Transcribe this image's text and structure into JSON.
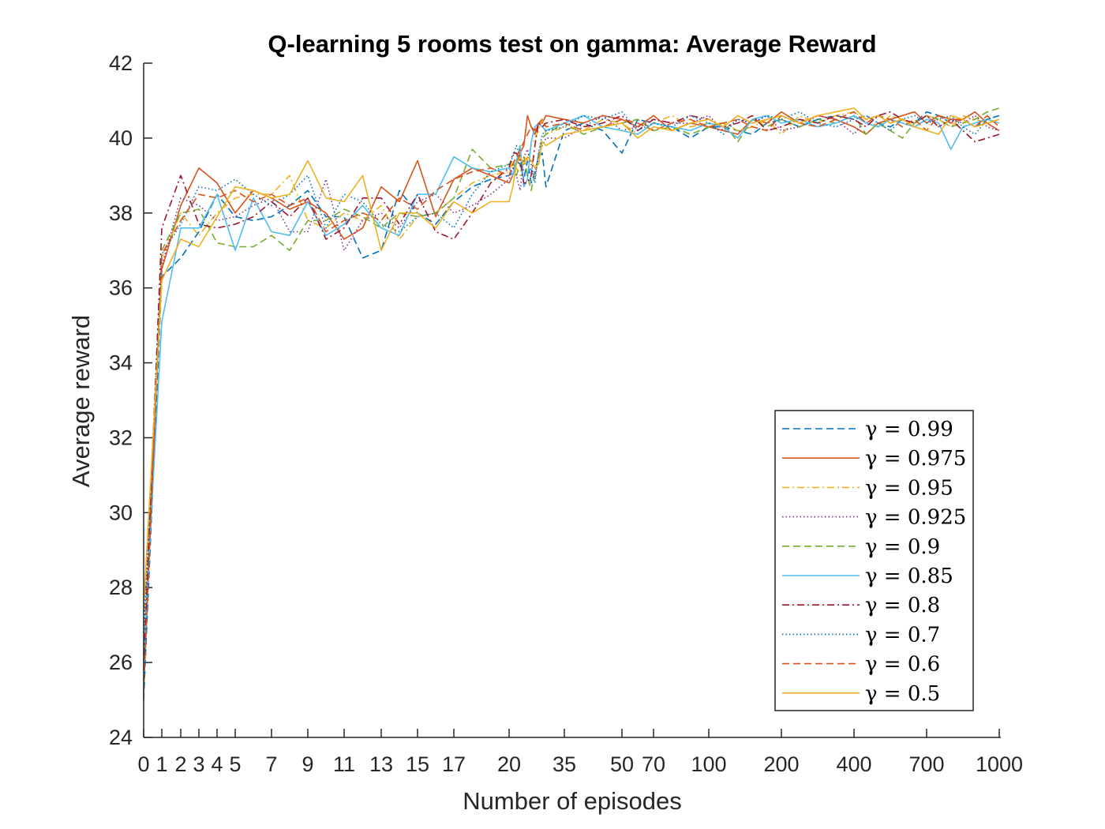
{
  "chart_data": {
    "type": "line",
    "title": "Q-learning 5 rooms test on gamma: Average Reward",
    "xlabel": "Number of episodes",
    "ylabel": "Average reward",
    "ylim": [
      24,
      42
    ],
    "y_ticks": [
      "24",
      "26",
      "28",
      "30",
      "32",
      "34",
      "36",
      "38",
      "40",
      "42"
    ],
    "x_scale": "piecewise (tick labels as printed, unevenly spaced)",
    "x_ticks": [
      "0",
      "1",
      "2",
      "3",
      "4",
      "5",
      "7",
      "9",
      "11",
      "13",
      "15",
      "17",
      "20",
      "35",
      "50",
      "70",
      "100",
      "200",
      "400",
      "700",
      "1000"
    ],
    "grid": false,
    "legend_placement": "bottom-right",
    "x": [
      0,
      1,
      2,
      3,
      4,
      5,
      6,
      7,
      8,
      9,
      10,
      11,
      12,
      13,
      14,
      15,
      16,
      17,
      18,
      19,
      20,
      21,
      22,
      23,
      24,
      25,
      26,
      27,
      28,
      29,
      30,
      35,
      40,
      45,
      50,
      60,
      70,
      80,
      90,
      100,
      120,
      140,
      160,
      180,
      200,
      250,
      300,
      350,
      400,
      450,
      500,
      550,
      600,
      650,
      700,
      750,
      800,
      850,
      900,
      950,
      1000
    ],
    "series": [
      {
        "name": "γ = 0.99",
        "color": "#0072BD",
        "dash": "dashed",
        "values": [
          25.0,
          36.3,
          36.8,
          37.5,
          38.5,
          37.9,
          37.8,
          37.9,
          38.2,
          38.6,
          37.9,
          37.9,
          36.8,
          37.0,
          38.6,
          38.0,
          37.7,
          38.3,
          38.7,
          38.9,
          39.0,
          39.1,
          39.4,
          39.3,
          38.9,
          39.4,
          38.8,
          39.1,
          39.5,
          39.6,
          38.7,
          40.2,
          40.4,
          40.2,
          39.6,
          40.5,
          40.4,
          40.3,
          40.0,
          40.3,
          40.3,
          40.2,
          40.1,
          40.4,
          40.5,
          40.3,
          40.5,
          40.6,
          40.5,
          40.6,
          40.4,
          40.3,
          40.5,
          40.4,
          40.7,
          40.6,
          40.4,
          40.5,
          40.3,
          40.5,
          40.6
        ]
      },
      {
        "name": "γ = 0.975",
        "color": "#D95319",
        "dash": "solid",
        "values": [
          26.0,
          36.5,
          38.2,
          39.2,
          38.8,
          38.0,
          38.6,
          38.4,
          38.1,
          38.3,
          38.0,
          37.3,
          37.6,
          38.7,
          38.3,
          39.4,
          37.9,
          38.9,
          39.2,
          39.0,
          38.8,
          39.0,
          39.3,
          39.6,
          39.8,
          40.6,
          40.3,
          40.1,
          40.4,
          40.4,
          40.6,
          40.5,
          40.4,
          40.6,
          40.5,
          40.3,
          40.6,
          40.2,
          40.4,
          40.3,
          40.2,
          40.1,
          40.5,
          40.4,
          40.7,
          40.4,
          40.6,
          40.5,
          40.3,
          40.1,
          40.4,
          40.5,
          40.6,
          40.7,
          40.4,
          40.6,
          40.5,
          40.5,
          40.7,
          40.4,
          40.2
        ]
      },
      {
        "name": "γ = 0.95",
        "color": "#EDB120",
        "dash": "dashdot",
        "values": [
          27.0,
          36.8,
          38.0,
          37.4,
          38.0,
          38.4,
          38.5,
          38.5,
          39.0,
          37.8,
          37.6,
          38.0,
          37.8,
          38.2,
          37.3,
          37.9,
          38.0,
          38.4,
          38.8,
          39.0,
          39.1,
          39.4,
          39.2,
          39.0,
          39.5,
          39.4,
          39.8,
          40.0,
          40.2,
          40.5,
          40.1,
          40.3,
          40.2,
          40.5,
          40.4,
          40.1,
          40.4,
          40.6,
          40.3,
          40.4,
          40.4,
          40.2,
          40.3,
          40.5,
          40.1,
          40.6,
          40.4,
          40.6,
          40.7,
          40.5,
          40.3,
          40.6,
          40.5,
          40.4,
          40.6,
          40.5,
          40.3,
          40.6,
          40.5,
          40.4,
          40.5
        ]
      },
      {
        "name": "γ = 0.925",
        "color": "#7E2F8E",
        "dash": "dotted",
        "values": [
          26.5,
          36.6,
          38.4,
          38.2,
          37.8,
          37.9,
          38.2,
          38.4,
          37.5,
          37.5,
          38.9,
          37.0,
          37.8,
          38.0,
          37.6,
          38.3,
          38.5,
          38.0,
          38.2,
          38.5,
          38.9,
          39.2,
          39.0,
          38.6,
          39.5,
          39.7,
          39.3,
          38.9,
          39.6,
          39.8,
          40.0,
          40.0,
          40.3,
          40.6,
          40.2,
          40.3,
          40.5,
          40.4,
          40.4,
          40.6,
          40.2,
          40.5,
          40.4,
          40.6,
          40.2,
          40.3,
          40.6,
          40.5,
          40.1,
          40.5,
          40.6,
          40.4,
          40.5,
          40.4,
          40.6,
          40.3,
          40.5,
          40.4,
          40.6,
          40.3,
          40.2
        ]
      },
      {
        "name": "γ = 0.9",
        "color": "#77AC30",
        "dash": "dashed",
        "values": [
          25.5,
          37.0,
          38.0,
          38.1,
          37.2,
          37.1,
          37.1,
          37.4,
          37.0,
          37.8,
          37.8,
          38.1,
          37.9,
          37.6,
          38.0,
          37.9,
          38.0,
          38.4,
          39.7,
          39.2,
          39.3,
          39.4,
          39.0,
          39.3,
          39.5,
          39.0,
          38.6,
          39.1,
          39.5,
          40.0,
          40.1,
          40.4,
          40.1,
          40.3,
          40.4,
          40.5,
          40.2,
          40.3,
          40.1,
          40.3,
          40.4,
          39.9,
          40.5,
          40.3,
          40.5,
          40.3,
          40.5,
          40.4,
          40.6,
          40.1,
          40.4,
          40.2,
          40.0,
          40.4,
          40.6,
          40.5,
          40.3,
          40.4,
          40.5,
          40.7,
          40.8
        ]
      },
      {
        "name": "γ = 0.85",
        "color": "#4DBEEE",
        "dash": "solid",
        "values": [
          26.2,
          35.1,
          37.6,
          37.6,
          38.5,
          37.0,
          38.4,
          37.5,
          37.4,
          38.3,
          37.4,
          37.7,
          38.2,
          37.6,
          37.4,
          38.5,
          38.5,
          39.5,
          39.2,
          39.1,
          39.2,
          39.0,
          39.4,
          39.8,
          38.7,
          38.9,
          39.9,
          40.3,
          40.4,
          40.3,
          40.2,
          40.4,
          40.6,
          40.3,
          40.2,
          40.1,
          40.4,
          40.3,
          40.2,
          40.4,
          40.3,
          40.0,
          40.5,
          40.6,
          40.4,
          40.5,
          40.3,
          40.4,
          40.6,
          40.4,
          40.3,
          40.5,
          40.4,
          40.3,
          40.5,
          40.4,
          39.7,
          40.3,
          40.4,
          40.5,
          40.4
        ]
      },
      {
        "name": "γ = 0.8",
        "color": "#A2142F",
        "dash": "dashdot",
        "values": [
          25.8,
          37.6,
          39.0,
          37.7,
          37.6,
          37.7,
          37.9,
          38.3,
          37.9,
          38.4,
          37.3,
          37.6,
          38.4,
          38.4,
          37.7,
          38.5,
          37.5,
          37.3,
          38.0,
          38.8,
          39.2,
          39.6,
          39.6,
          39.4,
          38.8,
          38.8,
          39.0,
          39.8,
          40.4,
          40.3,
          40.4,
          40.5,
          40.3,
          40.4,
          40.6,
          40.2,
          40.5,
          40.4,
          40.6,
          40.5,
          40.3,
          40.4,
          40.6,
          40.2,
          40.3,
          40.5,
          40.4,
          40.6,
          40.5,
          40.3,
          40.6,
          40.7,
          40.5,
          40.4,
          40.6,
          40.3,
          40.5,
          40.2,
          39.9,
          40.0,
          40.1
        ]
      },
      {
        "name": "γ = 0.7",
        "color": "#0072BD",
        "dash": "dotted",
        "values": [
          26.8,
          36.9,
          37.7,
          38.7,
          38.6,
          38.9,
          38.5,
          38.2,
          38.5,
          39.0,
          37.6,
          38.5,
          38.3,
          37.7,
          37.5,
          37.9,
          38.0,
          37.6,
          38.5,
          39.1,
          39.3,
          39.5,
          39.8,
          39.5,
          39.1,
          39.0,
          39.2,
          38.8,
          39.6,
          40.1,
          40.2,
          40.3,
          40.6,
          40.5,
          40.7,
          40.2,
          40.4,
          40.3,
          40.6,
          40.4,
          40.1,
          40.5,
          40.4,
          40.6,
          40.5,
          40.7,
          40.4,
          40.3,
          40.5,
          40.6,
          40.4,
          40.2,
          40.5,
          40.6,
          40.4,
          40.5,
          40.6,
          40.3,
          40.1,
          40.5,
          40.6
        ]
      },
      {
        "name": "γ = 0.6",
        "color": "#D95319",
        "dash": "dashed",
        "values": [
          25.2,
          36.9,
          37.8,
          38.5,
          38.4,
          38.6,
          38.3,
          38.5,
          38.2,
          38.4,
          37.5,
          37.8,
          38.0,
          37.8,
          38.4,
          38.1,
          38.6,
          38.9,
          39.1,
          39.2,
          39.0,
          39.3,
          39.5,
          39.7,
          39.9,
          40.1,
          40.3,
          40.2,
          40.4,
          40.5,
          40.3,
          40.4,
          40.2,
          40.3,
          40.5,
          40.4,
          40.2,
          40.4,
          40.5,
          40.3,
          40.4,
          40.5,
          40.3,
          40.2,
          40.6,
          40.4,
          40.3,
          40.5,
          40.7,
          40.4,
          40.6,
          40.5,
          40.3,
          40.5,
          40.2,
          40.6,
          40.4,
          40.5,
          40.3,
          40.6,
          40.3
        ]
      },
      {
        "name": "γ = 0.5",
        "color": "#EDB120",
        "dash": "solid",
        "values": [
          27.5,
          36.2,
          37.3,
          37.1,
          37.9,
          38.7,
          38.6,
          38.4,
          38.5,
          39.4,
          38.4,
          38.3,
          39.0,
          37.0,
          38.0,
          38.0,
          37.6,
          38.3,
          38.0,
          38.3,
          38.3,
          38.7,
          39.3,
          39.5,
          39.3,
          39.5,
          39.4,
          39.2,
          39.3,
          39.9,
          39.8,
          40.1,
          40.2,
          40.3,
          40.4,
          40.0,
          40.3,
          40.2,
          40.4,
          40.5,
          40.3,
          40.6,
          40.4,
          40.5,
          40.6,
          40.4,
          40.6,
          40.7,
          40.8,
          40.5,
          40.6,
          40.4,
          40.5,
          40.3,
          40.2,
          40.1,
          40.6,
          40.5,
          40.3,
          40.4,
          40.5
        ]
      }
    ]
  }
}
